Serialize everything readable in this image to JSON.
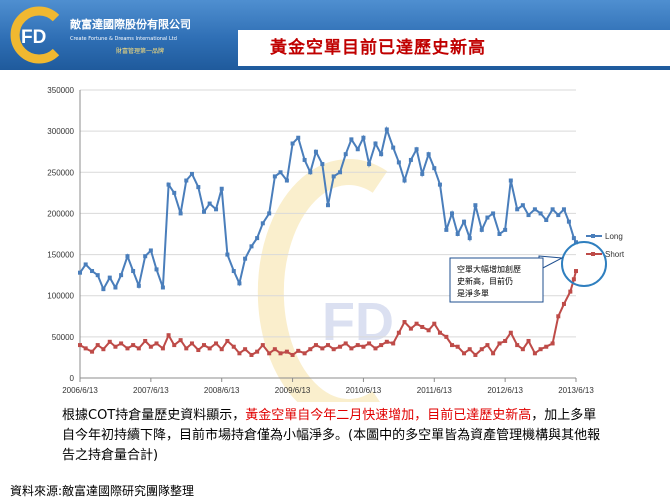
{
  "header": {
    "company_name": "敵富達國際股份有限公司",
    "company_en": "Create Fortune & Dreams International Ltd",
    "slogan": "財富管理第一品牌",
    "logo_letters": "FD",
    "title": "黃金空單目前已達歷史新高"
  },
  "colors": {
    "long": "#4a7ebb",
    "short": "#be4b48",
    "header": "#2f6fb5",
    "highlight": "#e00000"
  },
  "chart_data": {
    "type": "line",
    "title": "",
    "xlabel": "",
    "ylabel": "",
    "ylim": [
      0,
      350000
    ],
    "yticks": [
      "0",
      "50000",
      "100000",
      "150000",
      "200000",
      "250000",
      "300000",
      "350000"
    ],
    "xticks": [
      "2006/6/13",
      "2007/6/13",
      "2008/6/13",
      "2009/6/13",
      "2010/6/13",
      "2011/6/13",
      "2012/6/13",
      "2013/6/13"
    ],
    "grid": "horizontal",
    "legend": "right",
    "series": [
      {
        "name": "Long",
        "points": [
          [
            0.0,
            128000
          ],
          [
            0.08,
            138000
          ],
          [
            0.17,
            130000
          ],
          [
            0.25,
            125000
          ],
          [
            0.33,
            108000
          ],
          [
            0.42,
            122000
          ],
          [
            0.5,
            110000
          ],
          [
            0.58,
            125000
          ],
          [
            0.67,
            148000
          ],
          [
            0.75,
            130000
          ],
          [
            0.83,
            112000
          ],
          [
            0.92,
            148000
          ],
          [
            1.0,
            155000
          ],
          [
            1.08,
            132000
          ],
          [
            1.17,
            110000
          ],
          [
            1.25,
            235000
          ],
          [
            1.33,
            225000
          ],
          [
            1.42,
            200000
          ],
          [
            1.5,
            240000
          ],
          [
            1.58,
            248000
          ],
          [
            1.67,
            232000
          ],
          [
            1.75,
            202000
          ],
          [
            1.83,
            212000
          ],
          [
            1.92,
            205000
          ],
          [
            2.0,
            230000
          ],
          [
            2.08,
            150000
          ],
          [
            2.17,
            130000
          ],
          [
            2.25,
            115000
          ],
          [
            2.33,
            145000
          ],
          [
            2.42,
            160000
          ],
          [
            2.5,
            170000
          ],
          [
            2.58,
            188000
          ],
          [
            2.67,
            200000
          ],
          [
            2.75,
            245000
          ],
          [
            2.83,
            250000
          ],
          [
            2.92,
            240000
          ],
          [
            3.0,
            285000
          ],
          [
            3.08,
            292000
          ],
          [
            3.17,
            265000
          ],
          [
            3.25,
            250000
          ],
          [
            3.33,
            275000
          ],
          [
            3.42,
            260000
          ],
          [
            3.5,
            210000
          ],
          [
            3.58,
            245000
          ],
          [
            3.67,
            250000
          ],
          [
            3.75,
            272000
          ],
          [
            3.83,
            290000
          ],
          [
            3.92,
            278000
          ],
          [
            4.0,
            292000
          ],
          [
            4.08,
            260000
          ],
          [
            4.17,
            285000
          ],
          [
            4.25,
            272000
          ],
          [
            4.33,
            302000
          ],
          [
            4.42,
            280000
          ],
          [
            4.5,
            262000
          ],
          [
            4.58,
            240000
          ],
          [
            4.67,
            265000
          ],
          [
            4.75,
            278000
          ],
          [
            4.83,
            248000
          ],
          [
            4.92,
            272000
          ],
          [
            5.0,
            255000
          ],
          [
            5.08,
            235000
          ],
          [
            5.17,
            180000
          ],
          [
            5.25,
            200000
          ],
          [
            5.33,
            175000
          ],
          [
            5.42,
            190000
          ],
          [
            5.5,
            170000
          ],
          [
            5.58,
            210000
          ],
          [
            5.67,
            180000
          ],
          [
            5.75,
            195000
          ],
          [
            5.83,
            200000
          ],
          [
            5.92,
            175000
          ],
          [
            6.0,
            180000
          ],
          [
            6.08,
            240000
          ],
          [
            6.17,
            205000
          ],
          [
            6.25,
            210000
          ],
          [
            6.33,
            198000
          ],
          [
            6.42,
            205000
          ],
          [
            6.5,
            200000
          ],
          [
            6.58,
            192000
          ],
          [
            6.67,
            205000
          ],
          [
            6.75,
            198000
          ],
          [
            6.83,
            205000
          ],
          [
            6.9,
            190000
          ],
          [
            6.97,
            170000
          ],
          [
            7.0,
            165000
          ]
        ]
      },
      {
        "name": "Short",
        "points": [
          [
            0.0,
            40000
          ],
          [
            0.08,
            36000
          ],
          [
            0.17,
            32000
          ],
          [
            0.25,
            40000
          ],
          [
            0.33,
            35000
          ],
          [
            0.42,
            44000
          ],
          [
            0.5,
            38000
          ],
          [
            0.58,
            42000
          ],
          [
            0.67,
            36000
          ],
          [
            0.75,
            40000
          ],
          [
            0.83,
            36000
          ],
          [
            0.92,
            45000
          ],
          [
            1.0,
            38000
          ],
          [
            1.08,
            42000
          ],
          [
            1.17,
            36000
          ],
          [
            1.25,
            52000
          ],
          [
            1.33,
            40000
          ],
          [
            1.42,
            46000
          ],
          [
            1.5,
            36000
          ],
          [
            1.58,
            42000
          ],
          [
            1.67,
            34000
          ],
          [
            1.75,
            40000
          ],
          [
            1.83,
            36000
          ],
          [
            1.92,
            42000
          ],
          [
            2.0,
            35000
          ],
          [
            2.08,
            45000
          ],
          [
            2.17,
            38000
          ],
          [
            2.25,
            30000
          ],
          [
            2.33,
            35000
          ],
          [
            2.42,
            28000
          ],
          [
            2.5,
            32000
          ],
          [
            2.58,
            40000
          ],
          [
            2.67,
            30000
          ],
          [
            2.75,
            35000
          ],
          [
            2.83,
            30000
          ],
          [
            2.92,
            32000
          ],
          [
            3.0,
            28000
          ],
          [
            3.08,
            33000
          ],
          [
            3.17,
            30000
          ],
          [
            3.25,
            35000
          ],
          [
            3.33,
            40000
          ],
          [
            3.42,
            36000
          ],
          [
            3.5,
            40000
          ],
          [
            3.58,
            35000
          ],
          [
            3.67,
            38000
          ],
          [
            3.75,
            42000
          ],
          [
            3.83,
            36000
          ],
          [
            3.92,
            40000
          ],
          [
            4.0,
            38000
          ],
          [
            4.08,
            42000
          ],
          [
            4.17,
            36000
          ],
          [
            4.25,
            40000
          ],
          [
            4.33,
            44000
          ],
          [
            4.42,
            42000
          ],
          [
            4.5,
            55000
          ],
          [
            4.58,
            68000
          ],
          [
            4.67,
            60000
          ],
          [
            4.75,
            66000
          ],
          [
            4.83,
            62000
          ],
          [
            4.92,
            58000
          ],
          [
            5.0,
            66000
          ],
          [
            5.08,
            55000
          ],
          [
            5.17,
            50000
          ],
          [
            5.25,
            40000
          ],
          [
            5.33,
            38000
          ],
          [
            5.42,
            30000
          ],
          [
            5.5,
            35000
          ],
          [
            5.58,
            28000
          ],
          [
            5.67,
            35000
          ],
          [
            5.75,
            40000
          ],
          [
            5.83,
            30000
          ],
          [
            5.92,
            42000
          ],
          [
            6.0,
            45000
          ],
          [
            6.08,
            55000
          ],
          [
            6.17,
            40000
          ],
          [
            6.25,
            35000
          ],
          [
            6.33,
            45000
          ],
          [
            6.42,
            30000
          ],
          [
            6.5,
            35000
          ],
          [
            6.58,
            38000
          ],
          [
            6.67,
            42000
          ],
          [
            6.75,
            75000
          ],
          [
            6.83,
            90000
          ],
          [
            6.92,
            105000
          ],
          [
            6.97,
            120000
          ],
          [
            7.0,
            130000
          ]
        ]
      }
    ],
    "annotation": "空單大幅增加創歷史新高，目前仍是淨多單"
  },
  "description": {
    "part1": "根據COT持倉量歷史資料顯示，",
    "highlight": "黃金空單自今年二月快速增加，目前已達歷史新高",
    "part2": "，加上多單自今年初持續下降，目前市場持倉僅為小幅淨多。(本圖中的多空單皆為資產管理機構與其他報告之持倉量合計)"
  },
  "source": "資料來源:敵富達國際研究團隊整理"
}
